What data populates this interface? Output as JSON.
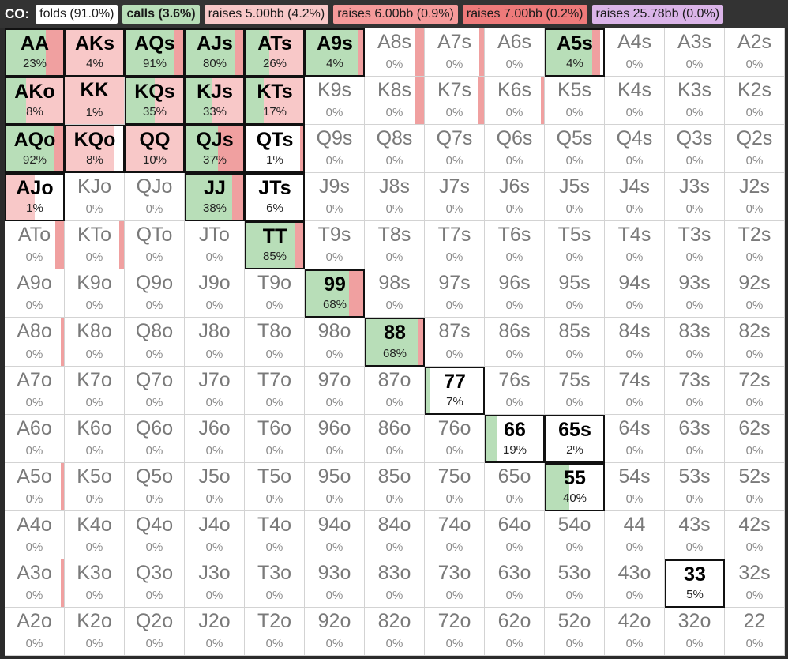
{
  "legend": {
    "position_label": "CO:",
    "items": [
      {
        "label": "folds (91.0%)",
        "color": "#ffffff",
        "bold": false
      },
      {
        "label": "calls (3.6%)",
        "color": "#b8deb8",
        "bold": true
      },
      {
        "label": "raises 5.00bb (4.2%)",
        "color": "#f8c8c8",
        "bold": false
      },
      {
        "label": "raises 6.00bb (0.9%)",
        "color": "#f59a9a",
        "bold": false
      },
      {
        "label": "raises 7.00bb (0.2%)",
        "color": "#ee7a7a",
        "bold": false
      },
      {
        "label": "raises 25.78bb (0.0%)",
        "color": "#dab4e8",
        "bold": false
      }
    ]
  },
  "colors": {
    "call": "#b8deb8",
    "raise": "#f8c8c8",
    "raise_dark": "#f0a0a0",
    "frame": "#111111"
  },
  "hands": [
    {
      "name": "AA",
      "pct": "23%",
      "calls": 0.7,
      "raises": 0.3,
      "frame": true
    },
    {
      "name": "AKs",
      "pct": "4%",
      "calls": 0,
      "raises": 1.0,
      "frame": true
    },
    {
      "name": "AQs",
      "pct": "91%",
      "calls": 0.85,
      "raises": 0.15,
      "frame": true
    },
    {
      "name": "AJs",
      "pct": "80%",
      "calls": 0.85,
      "raises": 0.15,
      "frame": true
    },
    {
      "name": "ATs",
      "pct": "26%",
      "calls": 0.4,
      "raises": 0.6,
      "frame": true
    },
    {
      "name": "A9s",
      "pct": "4%",
      "calls": 0.9,
      "raises": 0.1,
      "frame": true
    },
    {
      "name": "A8s",
      "pct": "0%",
      "calls": 0,
      "raises": 0.15
    },
    {
      "name": "A7s",
      "pct": "0%",
      "calls": 0,
      "raises": 0.08
    },
    {
      "name": "A6s",
      "pct": "0%",
      "calls": 0,
      "raises": 0
    },
    {
      "name": "A5s",
      "pct": "4%",
      "calls": 0.8,
      "raises": 0.15,
      "frame": true
    },
    {
      "name": "A4s",
      "pct": "0%",
      "calls": 0,
      "raises": 0
    },
    {
      "name": "A3s",
      "pct": "0%",
      "calls": 0,
      "raises": 0
    },
    {
      "name": "A2s",
      "pct": "0%",
      "calls": 0,
      "raises": 0
    },
    {
      "name": "AKo",
      "pct": "8%",
      "calls": 0.35,
      "raises": 0.65,
      "frame": true
    },
    {
      "name": "KK",
      "pct": "1%",
      "calls": 0,
      "raises": 1.0
    },
    {
      "name": "KQs",
      "pct": "35%",
      "calls": 0.5,
      "raises": 0.5,
      "frame": true
    },
    {
      "name": "KJs",
      "pct": "33%",
      "calls": 0.45,
      "raises": 0.55,
      "frame": true
    },
    {
      "name": "KTs",
      "pct": "17%",
      "calls": 0.3,
      "raises": 0.7,
      "frame": true
    },
    {
      "name": "K9s",
      "pct": "0%",
      "calls": 0,
      "raises": 0
    },
    {
      "name": "K8s",
      "pct": "0%",
      "calls": 0,
      "raises": 0.15
    },
    {
      "name": "K7s",
      "pct": "0%",
      "calls": 0,
      "raises": 0.1
    },
    {
      "name": "K6s",
      "pct": "0%",
      "calls": 0,
      "raises": 0.05
    },
    {
      "name": "K5s",
      "pct": "0%",
      "calls": 0,
      "raises": 0
    },
    {
      "name": "K4s",
      "pct": "0%",
      "calls": 0,
      "raises": 0
    },
    {
      "name": "K3s",
      "pct": "0%",
      "calls": 0,
      "raises": 0
    },
    {
      "name": "K2s",
      "pct": "0%",
      "calls": 0,
      "raises": 0
    },
    {
      "name": "AQo",
      "pct": "92%",
      "calls": 0.85,
      "raises": 0.15,
      "frame": true
    },
    {
      "name": "KQo",
      "pct": "8%",
      "calls": 0,
      "raises": 0.85,
      "frame": true
    },
    {
      "name": "QQ",
      "pct": "10%",
      "calls": 0,
      "raises": 1.0,
      "frame": true
    },
    {
      "name": "QJs",
      "pct": "37%",
      "calls": 0.55,
      "raises": 0.45,
      "frame": true
    },
    {
      "name": "QTs",
      "pct": "1%",
      "calls": 0,
      "raises": 0.03,
      "frame": true
    },
    {
      "name": "Q9s",
      "pct": "0%",
      "calls": 0,
      "raises": 0
    },
    {
      "name": "Q8s",
      "pct": "0%",
      "calls": 0,
      "raises": 0
    },
    {
      "name": "Q7s",
      "pct": "0%",
      "calls": 0,
      "raises": 0
    },
    {
      "name": "Q6s",
      "pct": "0%",
      "calls": 0,
      "raises": 0
    },
    {
      "name": "Q5s",
      "pct": "0%",
      "calls": 0,
      "raises": 0
    },
    {
      "name": "Q4s",
      "pct": "0%",
      "calls": 0,
      "raises": 0
    },
    {
      "name": "Q3s",
      "pct": "0%",
      "calls": 0,
      "raises": 0
    },
    {
      "name": "Q2s",
      "pct": "0%",
      "calls": 0,
      "raises": 0
    },
    {
      "name": "AJo",
      "pct": "1%",
      "calls": 0,
      "raises": 0.5,
      "frame": true
    },
    {
      "name": "KJo",
      "pct": "0%",
      "calls": 0,
      "raises": 0
    },
    {
      "name": "QJo",
      "pct": "0%",
      "calls": 0,
      "raises": 0
    },
    {
      "name": "JJ",
      "pct": "38%",
      "calls": 0.8,
      "raises": 0.2,
      "frame": true
    },
    {
      "name": "JTs",
      "pct": "6%",
      "calls": 0,
      "raises": 0,
      "frame": true
    },
    {
      "name": "J9s",
      "pct": "0%",
      "calls": 0,
      "raises": 0
    },
    {
      "name": "J8s",
      "pct": "0%",
      "calls": 0,
      "raises": 0
    },
    {
      "name": "J7s",
      "pct": "0%",
      "calls": 0,
      "raises": 0
    },
    {
      "name": "J6s",
      "pct": "0%",
      "calls": 0,
      "raises": 0
    },
    {
      "name": "J5s",
      "pct": "0%",
      "calls": 0,
      "raises": 0
    },
    {
      "name": "J4s",
      "pct": "0%",
      "calls": 0,
      "raises": 0
    },
    {
      "name": "J3s",
      "pct": "0%",
      "calls": 0,
      "raises": 0
    },
    {
      "name": "J2s",
      "pct": "0%",
      "calls": 0,
      "raises": 0
    },
    {
      "name": "ATo",
      "pct": "0%",
      "calls": 0,
      "raises": 0.15
    },
    {
      "name": "KTo",
      "pct": "0%",
      "calls": 0,
      "raises": 0.08
    },
    {
      "name": "QTo",
      "pct": "0%",
      "calls": 0,
      "raises": 0
    },
    {
      "name": "JTo",
      "pct": "0%",
      "calls": 0,
      "raises": 0
    },
    {
      "name": "TT",
      "pct": "85%",
      "calls": 0.85,
      "raises": 0.15,
      "frame": true
    },
    {
      "name": "T9s",
      "pct": "0%",
      "calls": 0,
      "raises": 0
    },
    {
      "name": "T8s",
      "pct": "0%",
      "calls": 0,
      "raises": 0
    },
    {
      "name": "T7s",
      "pct": "0%",
      "calls": 0,
      "raises": 0
    },
    {
      "name": "T6s",
      "pct": "0%",
      "calls": 0,
      "raises": 0
    },
    {
      "name": "T5s",
      "pct": "0%",
      "calls": 0,
      "raises": 0
    },
    {
      "name": "T4s",
      "pct": "0%",
      "calls": 0,
      "raises": 0
    },
    {
      "name": "T3s",
      "pct": "0%",
      "calls": 0,
      "raises": 0
    },
    {
      "name": "T2s",
      "pct": "0%",
      "calls": 0,
      "raises": 0
    },
    {
      "name": "A9o",
      "pct": "0%",
      "calls": 0,
      "raises": 0
    },
    {
      "name": "K9o",
      "pct": "0%",
      "calls": 0,
      "raises": 0
    },
    {
      "name": "Q9o",
      "pct": "0%",
      "calls": 0,
      "raises": 0
    },
    {
      "name": "J9o",
      "pct": "0%",
      "calls": 0,
      "raises": 0
    },
    {
      "name": "T9o",
      "pct": "0%",
      "calls": 0,
      "raises": 0
    },
    {
      "name": "99",
      "pct": "68%",
      "calls": 0.75,
      "raises": 0.25,
      "frame": true
    },
    {
      "name": "98s",
      "pct": "0%",
      "calls": 0,
      "raises": 0
    },
    {
      "name": "97s",
      "pct": "0%",
      "calls": 0,
      "raises": 0
    },
    {
      "name": "96s",
      "pct": "0%",
      "calls": 0,
      "raises": 0
    },
    {
      "name": "95s",
      "pct": "0%",
      "calls": 0,
      "raises": 0
    },
    {
      "name": "94s",
      "pct": "0%",
      "calls": 0,
      "raises": 0
    },
    {
      "name": "93s",
      "pct": "0%",
      "calls": 0,
      "raises": 0
    },
    {
      "name": "92s",
      "pct": "0%",
      "calls": 0,
      "raises": 0
    },
    {
      "name": "A8o",
      "pct": "0%",
      "calls": 0,
      "raises": 0.04
    },
    {
      "name": "K8o",
      "pct": "0%",
      "calls": 0,
      "raises": 0
    },
    {
      "name": "Q8o",
      "pct": "0%",
      "calls": 0,
      "raises": 0
    },
    {
      "name": "J8o",
      "pct": "0%",
      "calls": 0,
      "raises": 0
    },
    {
      "name": "T8o",
      "pct": "0%",
      "calls": 0,
      "raises": 0
    },
    {
      "name": "98o",
      "pct": "0%",
      "calls": 0,
      "raises": 0
    },
    {
      "name": "88",
      "pct": "68%",
      "calls": 0.9,
      "raises": 0.1,
      "frame": true
    },
    {
      "name": "87s",
      "pct": "0%",
      "calls": 0,
      "raises": 0
    },
    {
      "name": "86s",
      "pct": "0%",
      "calls": 0,
      "raises": 0
    },
    {
      "name": "85s",
      "pct": "0%",
      "calls": 0,
      "raises": 0
    },
    {
      "name": "84s",
      "pct": "0%",
      "calls": 0,
      "raises": 0
    },
    {
      "name": "83s",
      "pct": "0%",
      "calls": 0,
      "raises": 0
    },
    {
      "name": "82s",
      "pct": "0%",
      "calls": 0,
      "raises": 0
    },
    {
      "name": "A7o",
      "pct": "0%",
      "calls": 0,
      "raises": 0
    },
    {
      "name": "K7o",
      "pct": "0%",
      "calls": 0,
      "raises": 0
    },
    {
      "name": "Q7o",
      "pct": "0%",
      "calls": 0,
      "raises": 0
    },
    {
      "name": "J7o",
      "pct": "0%",
      "calls": 0,
      "raises": 0
    },
    {
      "name": "T7o",
      "pct": "0%",
      "calls": 0,
      "raises": 0
    },
    {
      "name": "97o",
      "pct": "0%",
      "calls": 0,
      "raises": 0
    },
    {
      "name": "87o",
      "pct": "0%",
      "calls": 0,
      "raises": 0
    },
    {
      "name": "77",
      "pct": "7%",
      "calls": 0.07,
      "raises": 0,
      "frame": true
    },
    {
      "name": "76s",
      "pct": "0%",
      "calls": 0,
      "raises": 0
    },
    {
      "name": "75s",
      "pct": "0%",
      "calls": 0,
      "raises": 0
    },
    {
      "name": "74s",
      "pct": "0%",
      "calls": 0,
      "raises": 0
    },
    {
      "name": "73s",
      "pct": "0%",
      "calls": 0,
      "raises": 0
    },
    {
      "name": "72s",
      "pct": "0%",
      "calls": 0,
      "raises": 0
    },
    {
      "name": "A6o",
      "pct": "0%",
      "calls": 0,
      "raises": 0
    },
    {
      "name": "K6o",
      "pct": "0%",
      "calls": 0,
      "raises": 0
    },
    {
      "name": "Q6o",
      "pct": "0%",
      "calls": 0,
      "raises": 0
    },
    {
      "name": "J6o",
      "pct": "0%",
      "calls": 0,
      "raises": 0
    },
    {
      "name": "T6o",
      "pct": "0%",
      "calls": 0,
      "raises": 0
    },
    {
      "name": "96o",
      "pct": "0%",
      "calls": 0,
      "raises": 0
    },
    {
      "name": "86o",
      "pct": "0%",
      "calls": 0,
      "raises": 0
    },
    {
      "name": "76o",
      "pct": "0%",
      "calls": 0,
      "raises": 0
    },
    {
      "name": "66",
      "pct": "19%",
      "calls": 0.2,
      "raises": 0,
      "frame": true
    },
    {
      "name": "65s",
      "pct": "2%",
      "calls": 0,
      "raises": 0,
      "frame": true
    },
    {
      "name": "64s",
      "pct": "0%",
      "calls": 0,
      "raises": 0
    },
    {
      "name": "63s",
      "pct": "0%",
      "calls": 0,
      "raises": 0
    },
    {
      "name": "62s",
      "pct": "0%",
      "calls": 0,
      "raises": 0
    },
    {
      "name": "A5o",
      "pct": "0%",
      "calls": 0,
      "raises": 0.04
    },
    {
      "name": "K5o",
      "pct": "0%",
      "calls": 0,
      "raises": 0
    },
    {
      "name": "Q5o",
      "pct": "0%",
      "calls": 0,
      "raises": 0
    },
    {
      "name": "J5o",
      "pct": "0%",
      "calls": 0,
      "raises": 0
    },
    {
      "name": "T5o",
      "pct": "0%",
      "calls": 0,
      "raises": 0
    },
    {
      "name": "95o",
      "pct": "0%",
      "calls": 0,
      "raises": 0
    },
    {
      "name": "85o",
      "pct": "0%",
      "calls": 0,
      "raises": 0
    },
    {
      "name": "75o",
      "pct": "0%",
      "calls": 0,
      "raises": 0
    },
    {
      "name": "65o",
      "pct": "0%",
      "calls": 0,
      "raises": 0
    },
    {
      "name": "55",
      "pct": "40%",
      "calls": 0.4,
      "raises": 0,
      "frame": true
    },
    {
      "name": "54s",
      "pct": "0%",
      "calls": 0,
      "raises": 0
    },
    {
      "name": "53s",
      "pct": "0%",
      "calls": 0,
      "raises": 0
    },
    {
      "name": "52s",
      "pct": "0%",
      "calls": 0,
      "raises": 0
    },
    {
      "name": "A4o",
      "pct": "0%",
      "calls": 0,
      "raises": 0
    },
    {
      "name": "K4o",
      "pct": "0%",
      "calls": 0,
      "raises": 0
    },
    {
      "name": "Q4o",
      "pct": "0%",
      "calls": 0,
      "raises": 0
    },
    {
      "name": "J4o",
      "pct": "0%",
      "calls": 0,
      "raises": 0
    },
    {
      "name": "T4o",
      "pct": "0%",
      "calls": 0,
      "raises": 0
    },
    {
      "name": "94o",
      "pct": "0%",
      "calls": 0,
      "raises": 0
    },
    {
      "name": "84o",
      "pct": "0%",
      "calls": 0,
      "raises": 0
    },
    {
      "name": "74o",
      "pct": "0%",
      "calls": 0,
      "raises": 0
    },
    {
      "name": "64o",
      "pct": "0%",
      "calls": 0,
      "raises": 0
    },
    {
      "name": "54o",
      "pct": "0%",
      "calls": 0,
      "raises": 0
    },
    {
      "name": "44",
      "pct": "0%",
      "calls": 0,
      "raises": 0
    },
    {
      "name": "43s",
      "pct": "0%",
      "calls": 0,
      "raises": 0
    },
    {
      "name": "42s",
      "pct": "0%",
      "calls": 0,
      "raises": 0
    },
    {
      "name": "A3o",
      "pct": "0%",
      "calls": 0,
      "raises": 0.04
    },
    {
      "name": "K3o",
      "pct": "0%",
      "calls": 0,
      "raises": 0
    },
    {
      "name": "Q3o",
      "pct": "0%",
      "calls": 0,
      "raises": 0
    },
    {
      "name": "J3o",
      "pct": "0%",
      "calls": 0,
      "raises": 0
    },
    {
      "name": "T3o",
      "pct": "0%",
      "calls": 0,
      "raises": 0
    },
    {
      "name": "93o",
      "pct": "0%",
      "calls": 0,
      "raises": 0
    },
    {
      "name": "83o",
      "pct": "0%",
      "calls": 0,
      "raises": 0
    },
    {
      "name": "73o",
      "pct": "0%",
      "calls": 0,
      "raises": 0
    },
    {
      "name": "63o",
      "pct": "0%",
      "calls": 0,
      "raises": 0
    },
    {
      "name": "53o",
      "pct": "0%",
      "calls": 0,
      "raises": 0
    },
    {
      "name": "43o",
      "pct": "0%",
      "calls": 0,
      "raises": 0
    },
    {
      "name": "33",
      "pct": "5%",
      "calls": 0,
      "raises": 0,
      "frame": true
    },
    {
      "name": "32s",
      "pct": "0%",
      "calls": 0,
      "raises": 0
    },
    {
      "name": "A2o",
      "pct": "0%",
      "calls": 0,
      "raises": 0
    },
    {
      "name": "K2o",
      "pct": "0%",
      "calls": 0,
      "raises": 0
    },
    {
      "name": "Q2o",
      "pct": "0%",
      "calls": 0,
      "raises": 0
    },
    {
      "name": "J2o",
      "pct": "0%",
      "calls": 0,
      "raises": 0
    },
    {
      "name": "T2o",
      "pct": "0%",
      "calls": 0,
      "raises": 0
    },
    {
      "name": "92o",
      "pct": "0%",
      "calls": 0,
      "raises": 0
    },
    {
      "name": "82o",
      "pct": "0%",
      "calls": 0,
      "raises": 0
    },
    {
      "name": "72o",
      "pct": "0%",
      "calls": 0,
      "raises": 0
    },
    {
      "name": "62o",
      "pct": "0%",
      "calls": 0,
      "raises": 0
    },
    {
      "name": "52o",
      "pct": "0%",
      "calls": 0,
      "raises": 0
    },
    {
      "name": "42o",
      "pct": "0%",
      "calls": 0,
      "raises": 0
    },
    {
      "name": "32o",
      "pct": "0%",
      "calls": 0,
      "raises": 0
    },
    {
      "name": "22",
      "pct": "0%",
      "calls": 0,
      "raises": 0
    }
  ]
}
